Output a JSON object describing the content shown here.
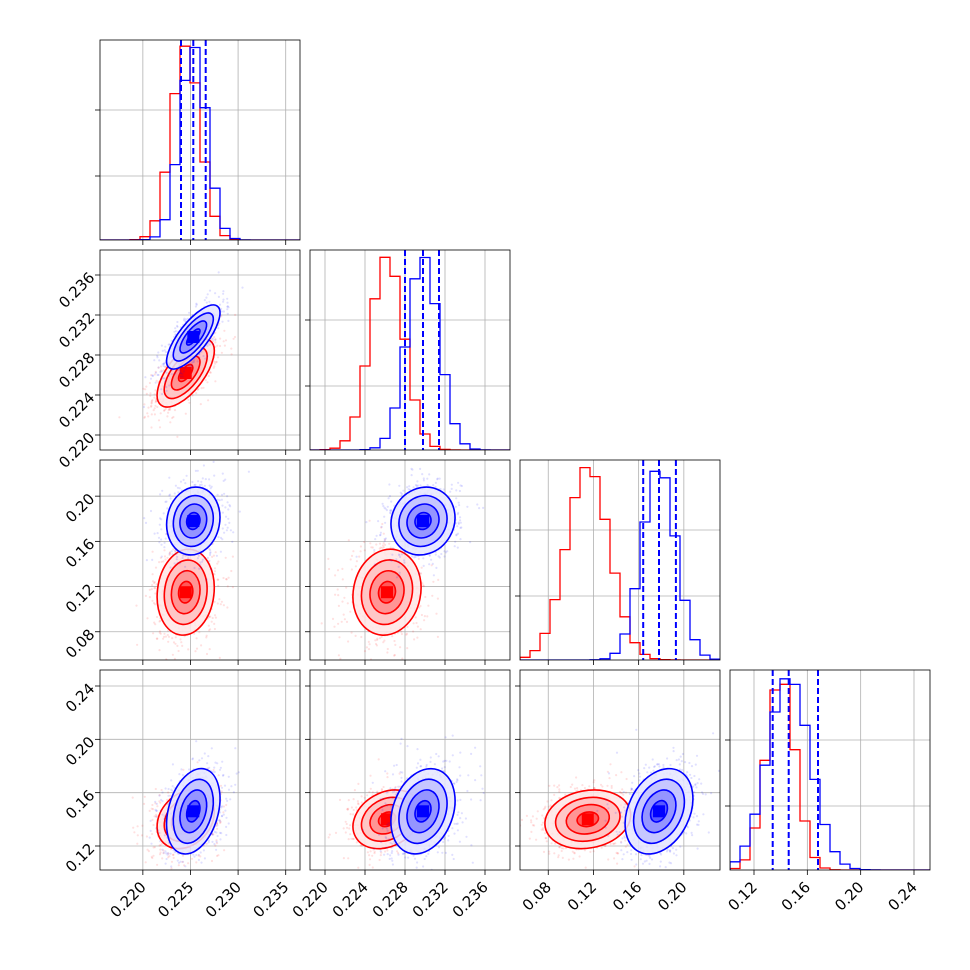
{
  "chart_data": {
    "type": "corner",
    "parameters": 4,
    "axes": [
      {
        "range": [
          0.2155,
          0.2365
        ],
        "ticks": [
          0.22,
          0.225,
          0.23,
          0.235
        ],
        "tick_labels": [
          "0.220",
          "0.225",
          "0.230",
          "0.235"
        ]
      },
      {
        "range": [
          0.2185,
          0.2385
        ],
        "ticks": [
          0.22,
          0.224,
          0.228,
          0.232,
          0.236
        ],
        "tick_labels": [
          "0.220",
          "0.224",
          "0.228",
          "0.232",
          "0.236"
        ]
      },
      {
        "range": [
          0.055,
          0.232
        ],
        "ticks": [
          0.08,
          0.12,
          0.16,
          0.2
        ],
        "tick_labels": [
          "0.08",
          "0.12",
          "0.16",
          "0.20"
        ]
      },
      {
        "range": [
          0.102,
          0.252
        ],
        "ticks": [
          0.12,
          0.16,
          0.2,
          0.24
        ],
        "tick_labels": [
          "0.12",
          "0.16",
          "0.20",
          "0.24"
        ]
      }
    ],
    "grid": true,
    "colors": {
      "blue": "#0000ff",
      "red": "#ff0000"
    },
    "series": [
      {
        "color": "#0000ff",
        "mean": [
          0.2253,
          0.2298,
          0.178,
          0.146
        ],
        "sd": [
          0.0014,
          0.0016,
          0.015,
          0.016
        ],
        "corr": {
          "0-1": 0.75,
          "0-2": 0.1,
          "1-2": 0.1,
          "0-3": 0.3,
          "1-3": 0.25,
          "2-3": 0.3
        },
        "quantile_lines": [
          [
            0.224,
            0.2253,
            0.2266
          ],
          [
            0.228,
            0.2298,
            0.2314
          ],
          [
            0.164,
            0.178,
            0.193
          ],
          [
            0.134,
            0.146,
            0.168
          ]
        ]
      },
      {
        "color": "#ff0000",
        "mean": [
          0.2245,
          0.2262,
          0.115,
          0.14
        ],
        "sd": [
          0.0015,
          0.0017,
          0.019,
          0.011
        ],
        "corr": {
          "0-1": 0.65,
          "0-2": 0.1,
          "1-2": 0.1,
          "0-3": 0.25,
          "1-3": 0.25,
          "2-3": 0.15
        }
      }
    ]
  }
}
